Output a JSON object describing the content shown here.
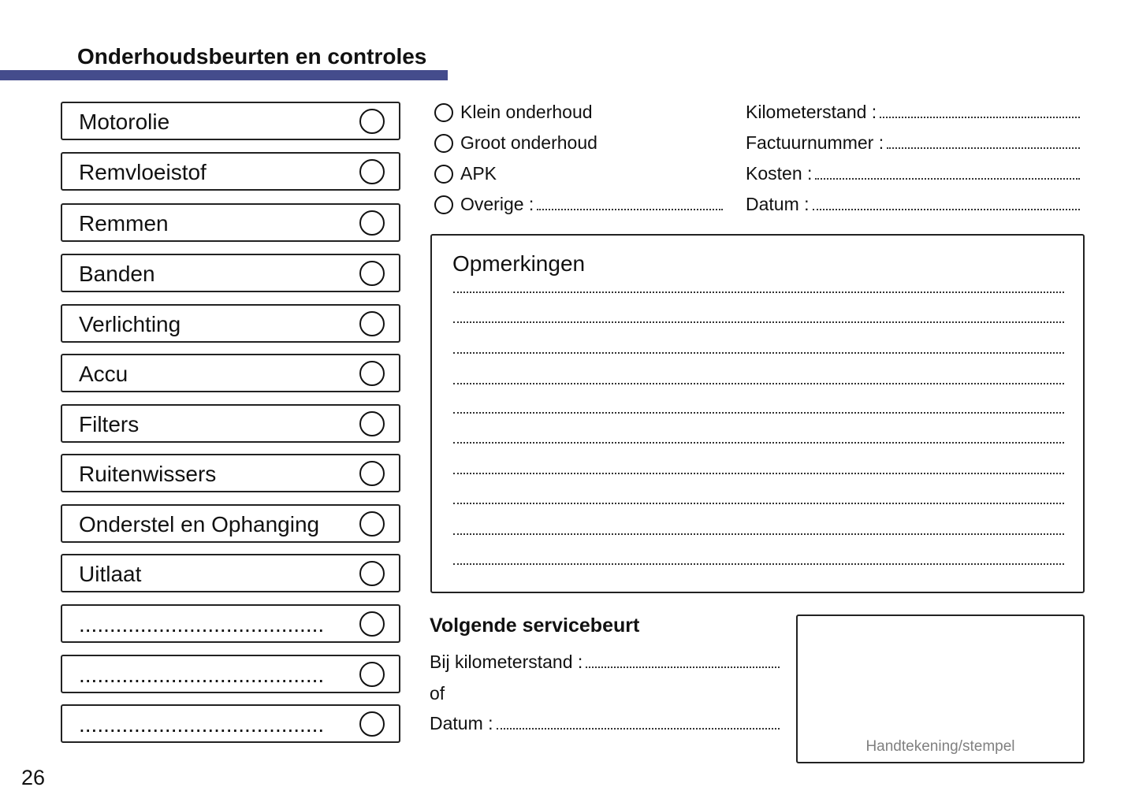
{
  "header": {
    "title": "Onderhoudsbeurten en controles",
    "accent_color": "#444c8c"
  },
  "checklist": [
    {
      "label": "Motorolie"
    },
    {
      "label": "Remvloeistof"
    },
    {
      "label": "Remmen"
    },
    {
      "label": "Banden"
    },
    {
      "label": "Verlichting"
    },
    {
      "label": "Accu"
    },
    {
      "label": "Filters"
    },
    {
      "label": "Ruitenwissers"
    },
    {
      "label": "Onderstel en Ophanging"
    },
    {
      "label": "Uitlaat"
    },
    {
      "label": "........................................"
    },
    {
      "label": "........................................"
    },
    {
      "label": "........................................"
    }
  ],
  "service_types": [
    "Klein onderhoud",
    "Groot onderhoud",
    "APK",
    "Overige :"
  ],
  "fields": [
    "Kilometerstand :",
    "Factuurnummer :",
    "Kosten :",
    "Datum :"
  ],
  "notes": {
    "title": "Opmerkingen"
  },
  "next_service": {
    "title": "Volgende servicebeurt",
    "mileage_label": "Bij kilometerstand :",
    "or_label": "of",
    "date_label": "Datum :"
  },
  "signature": {
    "label": "Handtekening/stempel"
  },
  "page_number": "26"
}
